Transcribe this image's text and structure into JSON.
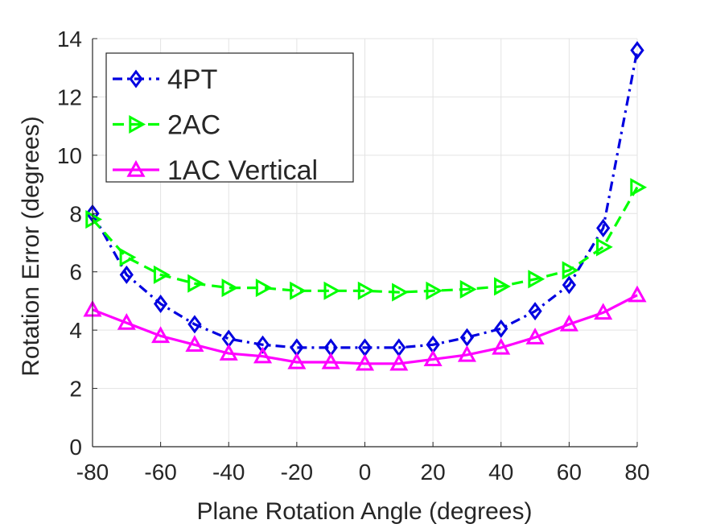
{
  "chart_data": {
    "type": "line",
    "title": "",
    "xlabel": "Plane Rotation Angle (degrees)",
    "ylabel": "Rotation Error (degrees)",
    "xlim": [
      -80,
      80
    ],
    "ylim": [
      0,
      14
    ],
    "x_ticks": [
      -80,
      -60,
      -40,
      -20,
      0,
      20,
      40,
      60,
      80
    ],
    "y_ticks": [
      0,
      2,
      4,
      6,
      8,
      10,
      12,
      14
    ],
    "grid": true,
    "legend_position": "top-left",
    "x": [
      -80,
      -70,
      -60,
      -50,
      -40,
      -30,
      -20,
      -10,
      0,
      10,
      20,
      30,
      40,
      50,
      60,
      70,
      80
    ],
    "series": [
      {
        "name": "4PT",
        "color": "#0000e0",
        "line_style": "dash-dot",
        "marker": "diamond",
        "values": [
          8.0,
          5.9,
          4.9,
          4.2,
          3.7,
          3.5,
          3.4,
          3.4,
          3.4,
          3.4,
          3.5,
          3.75,
          4.05,
          4.65,
          5.55,
          7.5,
          13.6
        ]
      },
      {
        "name": "2AC",
        "color": "#00ff00",
        "line_style": "dashed",
        "marker": "triangle-right",
        "values": [
          7.8,
          6.5,
          5.9,
          5.6,
          5.45,
          5.45,
          5.35,
          5.35,
          5.35,
          5.3,
          5.35,
          5.4,
          5.5,
          5.75,
          6.05,
          6.85,
          8.9
        ]
      },
      {
        "name": "1AC Vertical",
        "color": "#ff00ff",
        "line_style": "solid",
        "marker": "triangle-up",
        "values": [
          4.7,
          4.25,
          3.8,
          3.5,
          3.2,
          3.1,
          2.9,
          2.9,
          2.85,
          2.85,
          3.0,
          3.15,
          3.4,
          3.75,
          4.2,
          4.6,
          5.2
        ]
      }
    ]
  }
}
